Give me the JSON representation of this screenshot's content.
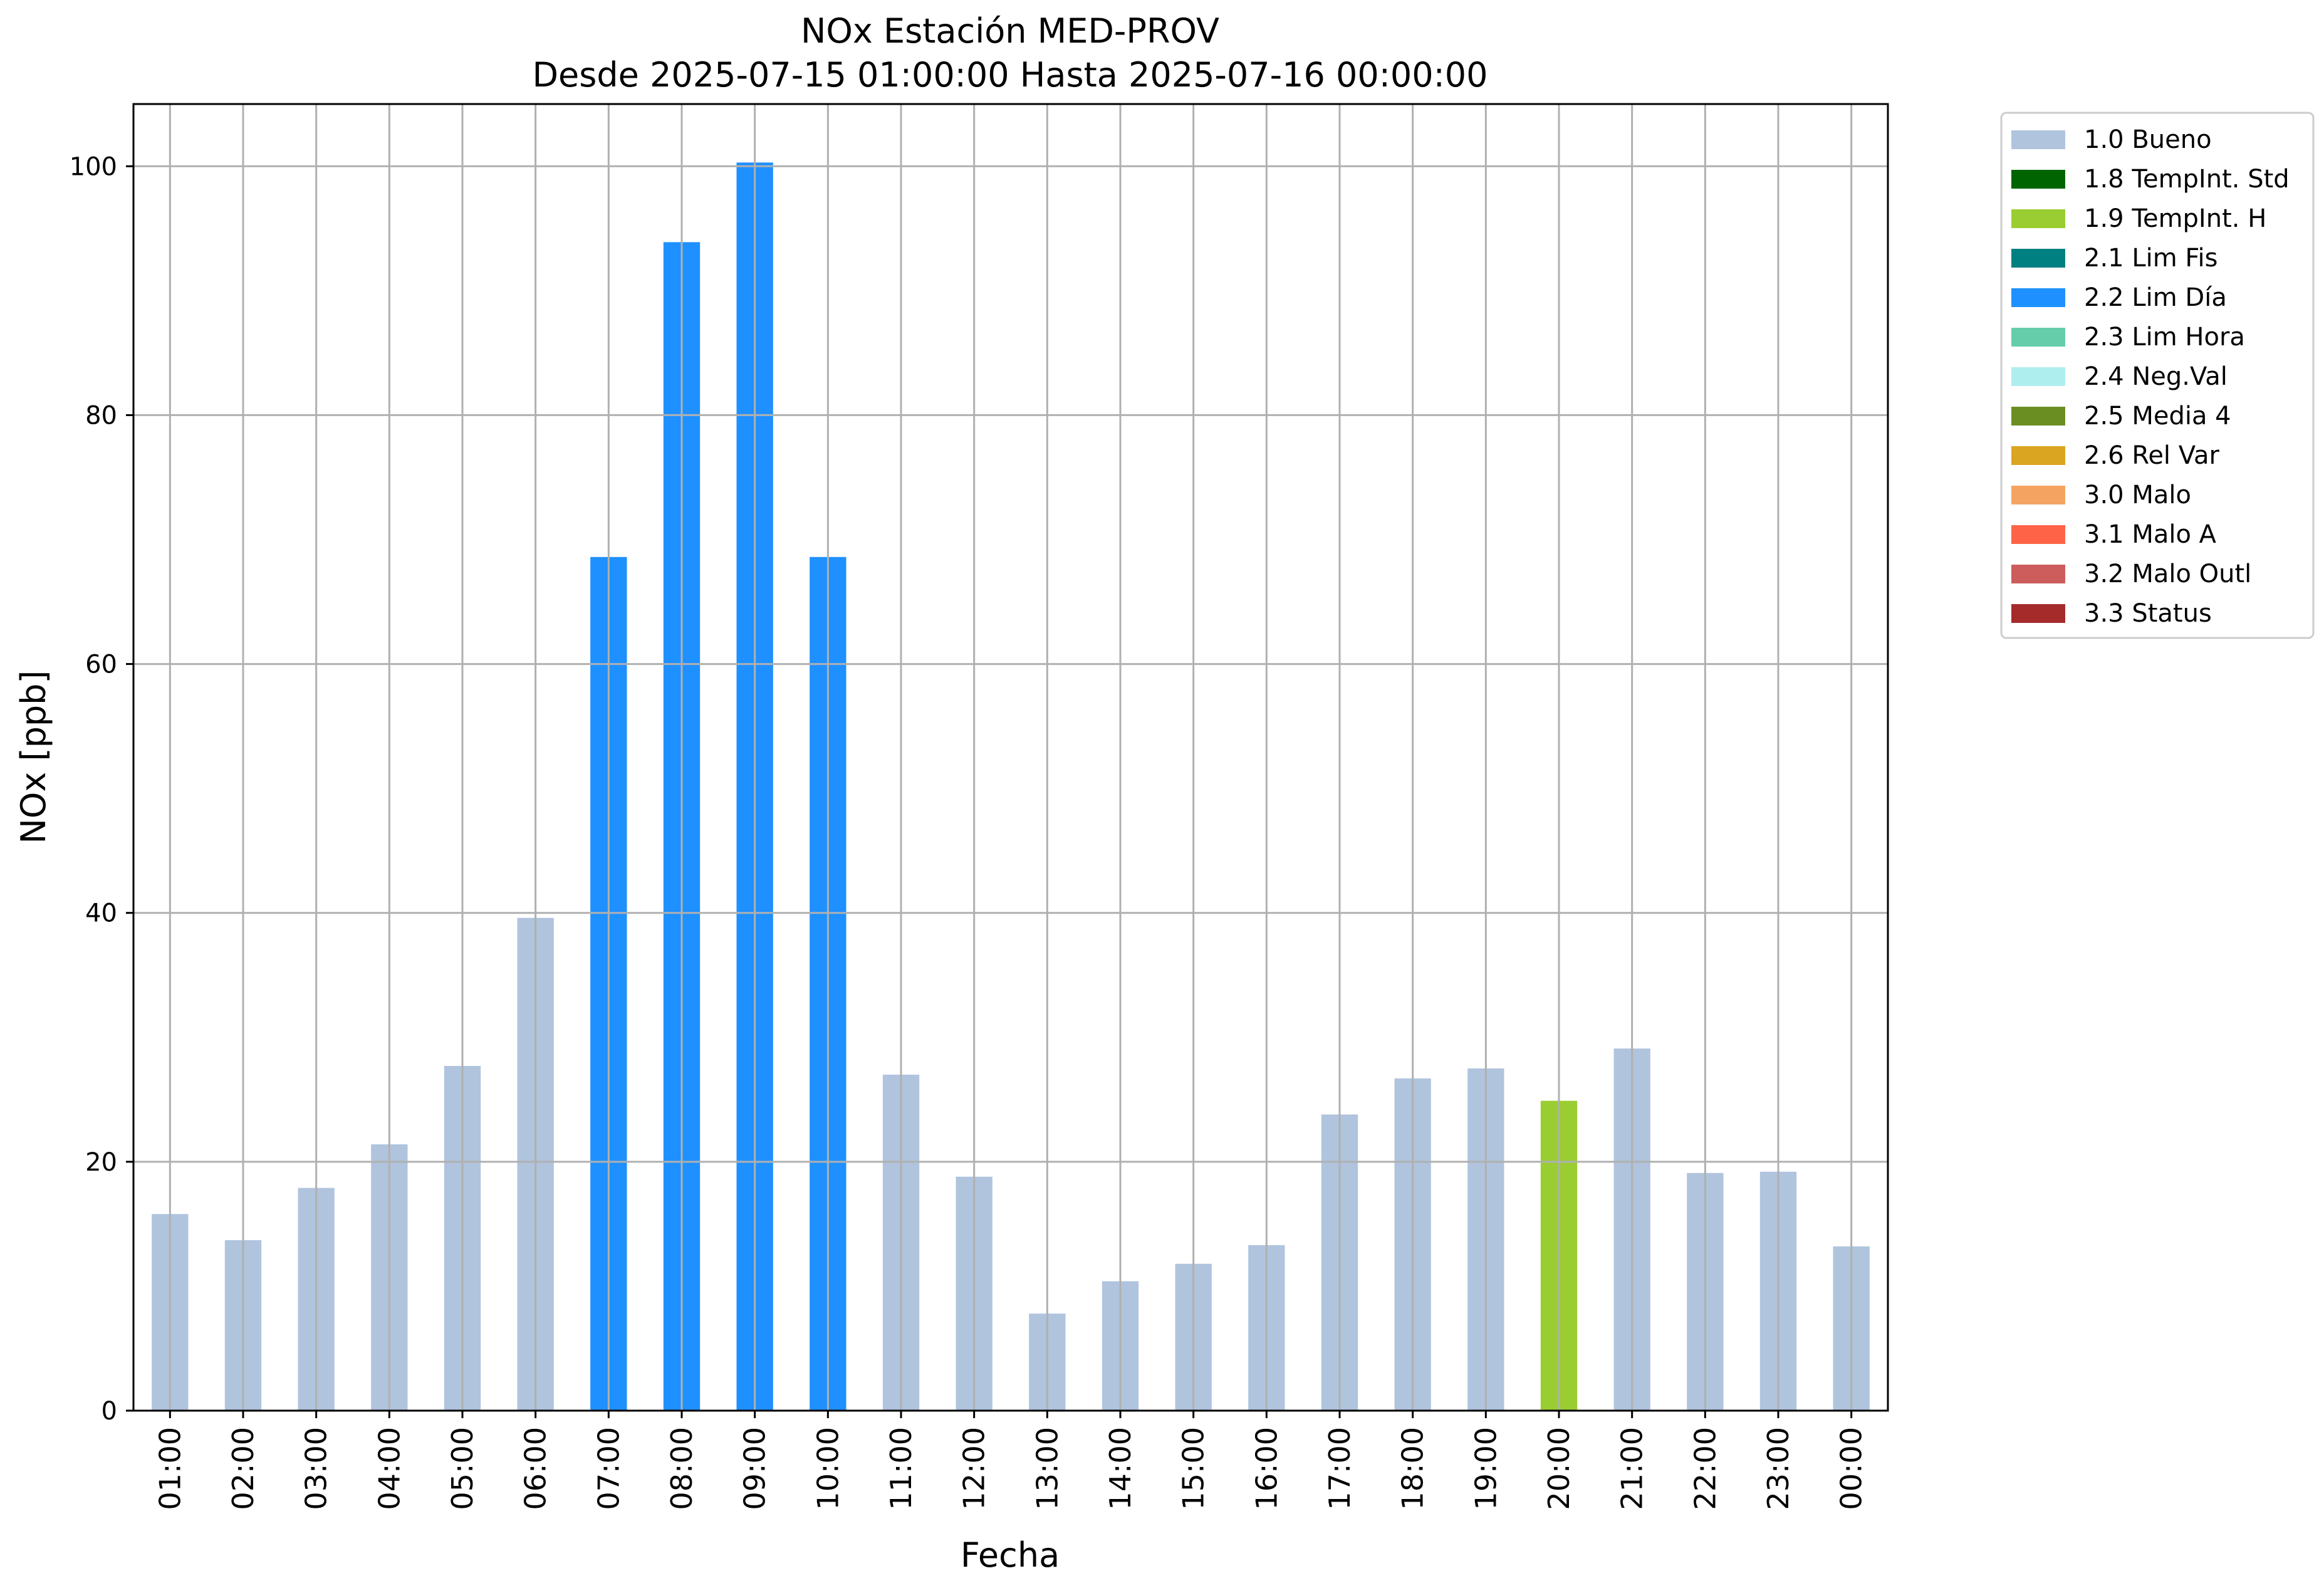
{
  "chart_data": {
    "type": "bar",
    "title": "NOx Estación MED-PROV",
    "subtitle": "Desde 2025-07-15 01:00:00 Hasta 2025-07-16 00:00:00",
    "xlabel": "Fecha",
    "ylabel": "NOx [ppb]",
    "ylim": [
      0,
      105
    ],
    "yticks": [
      0,
      20,
      40,
      60,
      80,
      100
    ],
    "grid": true,
    "legend_placement": "outside-right-top",
    "categories": [
      "01:00",
      "02:00",
      "03:00",
      "04:00",
      "05:00",
      "06:00",
      "07:00",
      "08:00",
      "09:00",
      "10:00",
      "11:00",
      "12:00",
      "13:00",
      "14:00",
      "15:00",
      "16:00",
      "17:00",
      "18:00",
      "19:00",
      "20:00",
      "21:00",
      "22:00",
      "23:00",
      "00:00"
    ],
    "values": [
      15.8,
      13.7,
      17.9,
      21.4,
      27.7,
      39.6,
      68.6,
      93.9,
      100.3,
      68.6,
      27.0,
      18.8,
      7.8,
      10.4,
      11.8,
      13.3,
      23.8,
      26.7,
      27.5,
      24.9,
      29.1,
      19.1,
      19.2,
      13.2
    ],
    "flags": [
      "1.0 Bueno",
      "1.0 Bueno",
      "1.0 Bueno",
      "1.0 Bueno",
      "1.0 Bueno",
      "1.0 Bueno",
      "2.2 Lim Día",
      "2.2 Lim Día",
      "2.2 Lim Día",
      "2.2 Lim Día",
      "1.0 Bueno",
      "1.0 Bueno",
      "1.0 Bueno",
      "1.0 Bueno",
      "1.0 Bueno",
      "1.0 Bueno",
      "1.0 Bueno",
      "1.0 Bueno",
      "1.0 Bueno",
      "1.9 TempInt. H",
      "1.0 Bueno",
      "1.0 Bueno",
      "1.0 Bueno",
      "1.0 Bueno"
    ],
    "legend": [
      {
        "label": "1.0 Bueno",
        "color": "#b0c4de"
      },
      {
        "label": "1.8 TempInt. Std",
        "color": "#006400"
      },
      {
        "label": "1.9 TempInt. H",
        "color": "#9acd32"
      },
      {
        "label": "2.1 Lim Fis",
        "color": "#008080"
      },
      {
        "label": "2.2 Lim Día",
        "color": "#1e90ff"
      },
      {
        "label": "2.3 Lim Hora",
        "color": "#66cdaa"
      },
      {
        "label": "2.4 Neg.Val",
        "color": "#afeeee"
      },
      {
        "label": "2.5 Media 4",
        "color": "#6b8e23"
      },
      {
        "label": "2.6 Rel Var",
        "color": "#daa520"
      },
      {
        "label": "3.0 Malo",
        "color": "#f4a460"
      },
      {
        "label": "3.1 Malo A",
        "color": "#ff6347"
      },
      {
        "label": "3.2 Malo Outl",
        "color": "#cd5c5c"
      },
      {
        "label": "3.3 Status",
        "color": "#a52a2a"
      }
    ]
  }
}
